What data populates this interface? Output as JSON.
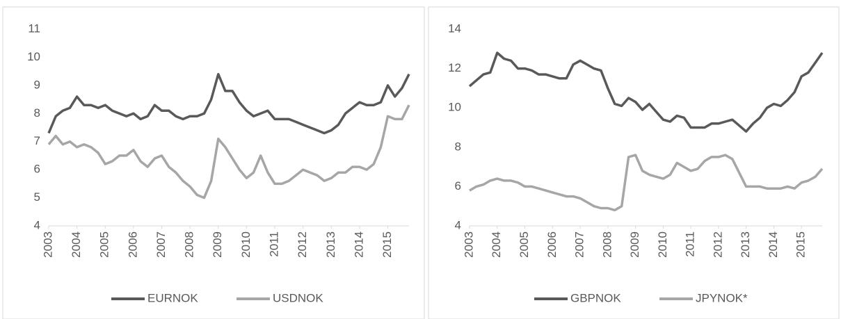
{
  "chart_data": [
    {
      "type": "line",
      "x": [
        2003,
        2003.25,
        2003.5,
        2003.75,
        2004,
        2004.25,
        2004.5,
        2004.75,
        2005,
        2005.25,
        2005.5,
        2005.75,
        2006,
        2006.25,
        2006.5,
        2006.75,
        2007,
        2007.25,
        2007.5,
        2007.75,
        2008,
        2008.25,
        2008.5,
        2008.75,
        2009,
        2009.25,
        2009.5,
        2009.75,
        2010,
        2010.25,
        2010.5,
        2010.75,
        2011,
        2011.25,
        2011.5,
        2011.75,
        2012,
        2012.25,
        2012.5,
        2012.75,
        2013,
        2013.25,
        2013.5,
        2013.75,
        2014,
        2014.25,
        2014.5,
        2014.75,
        2015,
        2015.25,
        2015.5,
        2015.75
      ],
      "xlim": [
        2003,
        2015.75
      ],
      "xticks": [
        2003,
        2004,
        2005,
        2006,
        2007,
        2008,
        2009,
        2010,
        2011,
        2012,
        2013,
        2014,
        2015
      ],
      "ylim": [
        4,
        11
      ],
      "yticks": [
        4,
        5,
        6,
        7,
        8,
        9,
        10,
        11
      ],
      "series": [
        {
          "name": "EURNOK",
          "color": "#595959",
          "values": [
            7.3,
            7.9,
            8.1,
            8.2,
            8.6,
            8.3,
            8.3,
            8.2,
            8.3,
            8.1,
            8.0,
            7.9,
            8.0,
            7.8,
            7.9,
            8.3,
            8.1,
            8.1,
            7.9,
            7.8,
            7.9,
            7.9,
            8.0,
            8.5,
            9.4,
            8.8,
            8.8,
            8.4,
            8.1,
            7.9,
            8.0,
            8.1,
            7.8,
            7.8,
            7.8,
            7.7,
            7.6,
            7.5,
            7.4,
            7.3,
            7.4,
            7.6,
            8.0,
            8.2,
            8.4,
            8.3,
            8.3,
            8.4,
            9.0,
            8.6,
            8.9,
            9.4
          ]
        },
        {
          "name": "USDNOK",
          "color": "#a6a6a6",
          "values": [
            6.9,
            7.2,
            6.9,
            7.0,
            6.8,
            6.9,
            6.8,
            6.6,
            6.2,
            6.3,
            6.5,
            6.5,
            6.7,
            6.3,
            6.1,
            6.4,
            6.5,
            6.1,
            5.9,
            5.6,
            5.4,
            5.1,
            5.0,
            5.6,
            7.1,
            6.8,
            6.4,
            6.0,
            5.7,
            5.9,
            6.5,
            5.9,
            5.5,
            5.5,
            5.6,
            5.8,
            6.0,
            5.9,
            5.8,
            5.6,
            5.7,
            5.9,
            5.9,
            6.1,
            6.1,
            6.0,
            6.2,
            6.8,
            7.9,
            7.8,
            7.8,
            8.3
          ]
        }
      ]
    },
    {
      "type": "line",
      "x": [
        2003,
        2003.25,
        2003.5,
        2003.75,
        2004,
        2004.25,
        2004.5,
        2004.75,
        2005,
        2005.25,
        2005.5,
        2005.75,
        2006,
        2006.25,
        2006.5,
        2006.75,
        2007,
        2007.25,
        2007.5,
        2007.75,
        2008,
        2008.25,
        2008.5,
        2008.75,
        2009,
        2009.25,
        2009.5,
        2009.75,
        2010,
        2010.25,
        2010.5,
        2010.75,
        2011,
        2011.25,
        2011.5,
        2011.75,
        2012,
        2012.25,
        2012.5,
        2012.75,
        2013,
        2013.25,
        2013.5,
        2013.75,
        2014,
        2014.25,
        2014.5,
        2014.75,
        2015,
        2015.25,
        2015.5,
        2015.75
      ],
      "xlim": [
        2003,
        2015.75
      ],
      "xticks": [
        2003,
        2004,
        2005,
        2006,
        2007,
        2008,
        2009,
        2010,
        2011,
        2012,
        2013,
        2014,
        2015
      ],
      "ylim": [
        4,
        14
      ],
      "yticks": [
        4,
        6,
        8,
        10,
        12,
        14
      ],
      "series": [
        {
          "name": "GBPNOK",
          "color": "#595959",
          "values": [
            11.1,
            11.4,
            11.7,
            11.8,
            12.8,
            12.5,
            12.4,
            12.0,
            12.0,
            11.9,
            11.7,
            11.7,
            11.6,
            11.5,
            11.5,
            12.2,
            12.4,
            12.2,
            12.0,
            11.9,
            11.0,
            10.2,
            10.1,
            10.5,
            10.3,
            9.9,
            10.2,
            9.8,
            9.4,
            9.3,
            9.6,
            9.5,
            9.0,
            9.0,
            9.0,
            9.2,
            9.2,
            9.3,
            9.4,
            9.1,
            8.8,
            9.2,
            9.5,
            10.0,
            10.2,
            10.1,
            10.4,
            10.8,
            11.6,
            11.8,
            12.3,
            12.8
          ]
        },
        {
          "name": "JPYNOK*",
          "color": "#a6a6a6",
          "values": [
            5.8,
            6.0,
            6.1,
            6.3,
            6.4,
            6.3,
            6.3,
            6.2,
            6.0,
            6.0,
            5.9,
            5.8,
            5.7,
            5.6,
            5.5,
            5.5,
            5.4,
            5.2,
            5.0,
            4.9,
            4.9,
            4.8,
            5.0,
            7.5,
            7.6,
            6.8,
            6.6,
            6.5,
            6.4,
            6.6,
            7.2,
            7.0,
            6.8,
            6.9,
            7.3,
            7.5,
            7.5,
            7.6,
            7.4,
            6.7,
            6.0,
            6.0,
            6.0,
            5.9,
            5.9,
            5.9,
            6.0,
            5.9,
            6.2,
            6.3,
            6.5,
            6.9
          ]
        }
      ]
    }
  ]
}
